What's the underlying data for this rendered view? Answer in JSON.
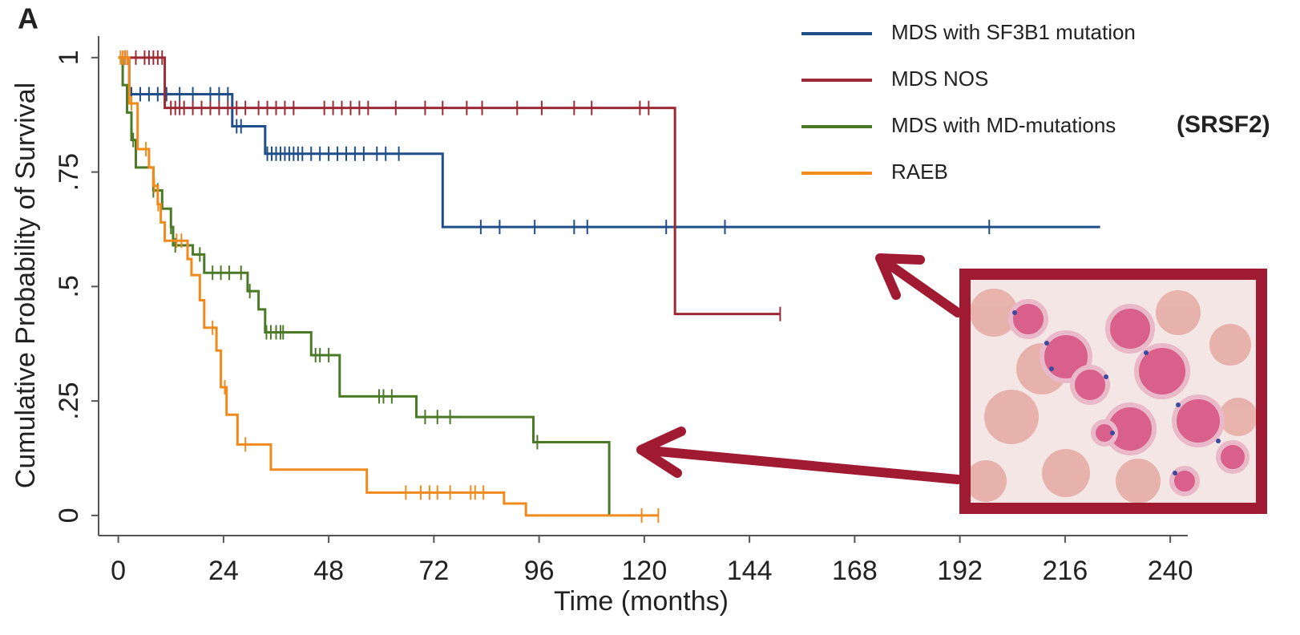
{
  "chart_data": {
    "type": "line",
    "step": true,
    "panel_label": "A",
    "xlabel": "Time (months)",
    "ylabel": "Cumulative Probability of Survival",
    "annotation": "(SRSF2)",
    "xlim": [
      -4.5,
      244
    ],
    "ylim": [
      -0.044,
      1.047
    ],
    "xticks": [
      0,
      24,
      48,
      72,
      96,
      120,
      144,
      168,
      192,
      216,
      240
    ],
    "yticks": [
      0,
      {
        "value": 0.25,
        "label": ".25"
      },
      {
        "value": 0.5,
        "label": ".5"
      },
      {
        "value": 0.75,
        "label": ".75"
      },
      1
    ],
    "legend": "top-right",
    "series": [
      {
        "name": "MDS with SF3B1 mutation",
        "color": "#1f4e89",
        "x": [
          0,
          2.5,
          26,
          33.5,
          74,
          224
        ],
        "values": [
          1,
          0.92,
          0.85,
          0.79,
          0.63,
          0.63
        ],
        "censored": [
          1.5,
          2,
          3,
          5,
          7,
          9,
          11,
          14,
          17,
          21,
          23,
          25,
          27,
          28,
          34,
          35,
          36,
          37,
          38,
          39,
          40,
          41,
          42,
          44,
          46,
          48,
          50,
          52,
          54,
          56,
          59,
          61,
          64,
          82.7,
          87,
          95,
          104,
          107,
          125,
          138.4,
          198.7
        ]
      },
      {
        "name": "MDS NOS",
        "color": "#9c2a35",
        "x": [
          0,
          10.6,
          127,
          151
        ],
        "values": [
          1,
          0.89,
          0.44,
          0.44
        ],
        "censored": [
          2,
          4,
          6,
          7,
          8,
          9,
          10,
          12,
          13,
          14,
          15,
          17,
          19,
          21,
          23,
          25,
          27,
          29,
          32,
          34,
          36,
          38,
          40,
          47,
          49,
          51,
          53,
          55,
          57,
          63.3,
          70,
          74,
          79.5,
          83,
          91,
          96.6,
          104,
          108,
          119,
          121,
          151
        ]
      },
      {
        "name": "MDS with MD-mutations",
        "color": "#4a7a26",
        "x": [
          0,
          1,
          2,
          3,
          4,
          8,
          10,
          12,
          12.5,
          17,
          19.6,
          29.5,
          32,
          33.5,
          44,
          50.5,
          68,
          94.7,
          112
        ],
        "values": [
          1,
          0.94,
          0.88,
          0.82,
          0.76,
          0.71,
          0.67,
          0.63,
          0.59,
          0.57,
          0.53,
          0.49,
          0.45,
          0.4,
          0.35,
          0.26,
          0.215,
          0.16,
          0
        ],
        "censored": [
          3.4,
          8,
          9,
          12,
          13,
          18.6,
          21.5,
          23.4,
          25.3,
          28,
          30,
          33.8,
          34.8,
          36,
          37,
          37.6,
          45,
          46,
          48,
          59.5,
          60.5,
          62.4,
          70,
          72.8,
          75.7,
          95.6
        ]
      },
      {
        "name": "RAEB",
        "color": "#f08a1c",
        "x": [
          0,
          2.5,
          4.4,
          7,
          8,
          9,
          9.7,
          10.6,
          15.8,
          16.7,
          18.6,
          19.6,
          22.4,
          23.4,
          24.7,
          27.2,
          34.8,
          56.7,
          88,
          93,
          123.2
        ],
        "values": [
          1,
          0.9,
          0.8,
          0.76,
          0.72,
          0.68,
          0.64,
          0.6,
          0.56,
          0.525,
          0.47,
          0.41,
          0.36,
          0.28,
          0.22,
          0.155,
          0.1,
          0.05,
          0.026,
          0,
          0
        ],
        "censored": [
          0.5,
          1,
          1.5,
          2,
          3,
          6.3,
          8.2,
          9.1,
          13.3,
          14.4,
          21.5,
          24.3,
          29,
          65.6,
          69,
          71,
          72.8,
          75.7,
          80.4,
          81.4,
          83.3,
          119.4,
          123.2
        ]
      }
    ]
  }
}
